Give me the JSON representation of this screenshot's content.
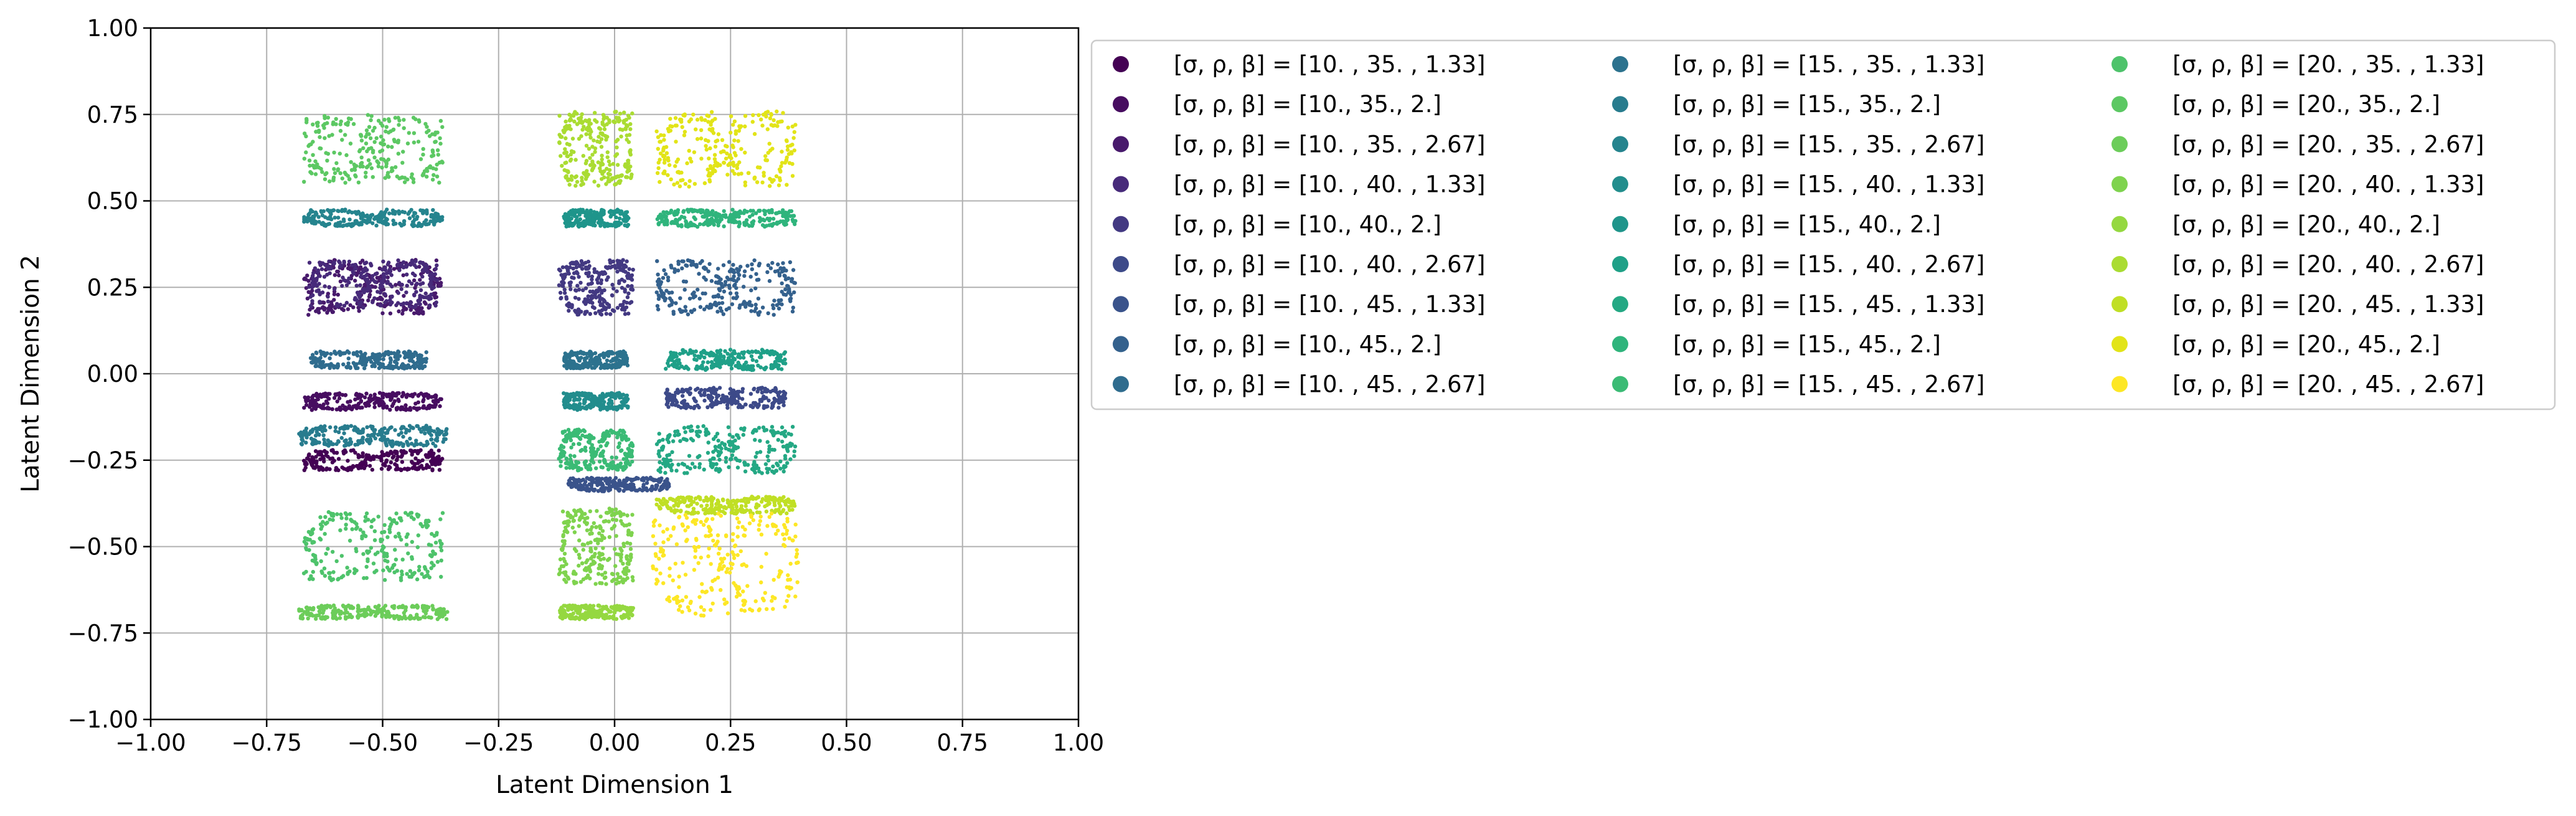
{
  "chart_data": {
    "type": "scatter",
    "xlabel": "Latent Dimension 1",
    "ylabel": "Latent Dimension 2",
    "xlim": [
      -1.0,
      1.0
    ],
    "ylim": [
      -1.0,
      1.0
    ],
    "grid": true,
    "legend_placement": "outside-right",
    "legend_columns": 3,
    "x_ticks": [
      -1.0,
      -0.75,
      -0.5,
      -0.25,
      0.0,
      0.25,
      0.5,
      0.75,
      1.0
    ],
    "x_tick_labels": [
      "−1.00",
      "−0.75",
      "−0.50",
      "−0.25",
      "0.00",
      "0.25",
      "0.50",
      "0.75",
      "1.00"
    ],
    "y_ticks": [
      -1.0,
      -0.75,
      -0.5,
      -0.25,
      0.0,
      0.25,
      0.5,
      0.75,
      1.0
    ],
    "y_tick_labels": [
      "−1.00",
      "−0.75",
      "−0.50",
      "−0.25",
      "0.00",
      "0.25",
      "0.50",
      "0.75",
      "1.00"
    ],
    "series": [
      {
        "name": "[σ, ρ, β] = [10.  , 35.  ,  1.33]",
        "color": "#440154",
        "clusters": [
          {
            "cx": -0.52,
            "cy": -0.25,
            "w": 0.3,
            "h": 0.06
          }
        ]
      },
      {
        "name": "[σ, ρ, β] = [10., 35.,  2.]",
        "color": "#470d60",
        "clusters": [
          {
            "cx": -0.52,
            "cy": -0.08,
            "w": 0.3,
            "h": 0.05
          }
        ]
      },
      {
        "name": "[σ, ρ, β] = [10.  , 35.  ,  2.67]",
        "color": "#481a6c",
        "clusters": [
          {
            "cx": -0.52,
            "cy": 0.25,
            "w": 0.3,
            "h": 0.16
          }
        ]
      },
      {
        "name": "[σ, ρ, β] = [10.  , 40.  ,  1.33]",
        "color": "#472a7a",
        "clusters": [
          {
            "cx": -0.52,
            "cy": 0.26,
            "w": 0.28,
            "h": 0.14
          }
        ]
      },
      {
        "name": "[σ, ρ, β] = [10., 40.,  2.]",
        "color": "#433982",
        "clusters": [
          {
            "cx": -0.04,
            "cy": 0.25,
            "w": 0.16,
            "h": 0.16
          }
        ]
      },
      {
        "name": "[σ, ρ, β] = [10.  , 40.  ,  2.67]",
        "color": "#3d4a89",
        "clusters": [
          {
            "cx": 0.24,
            "cy": -0.07,
            "w": 0.26,
            "h": 0.06
          }
        ]
      },
      {
        "name": "[σ, ρ, β] = [10.  , 45.  ,  1.33]",
        "color": "#3a538b",
        "clusters": [
          {
            "cx": 0.01,
            "cy": -0.32,
            "w": 0.22,
            "h": 0.04
          }
        ]
      },
      {
        "name": "[σ, ρ, β] = [10., 45.,  2.]",
        "color": "#34618d",
        "clusters": [
          {
            "cx": 0.24,
            "cy": 0.25,
            "w": 0.3,
            "h": 0.16
          }
        ]
      },
      {
        "name": "[σ, ρ, β] = [10.  , 45.  ,  2.67]",
        "color": "#2f6c8e",
        "clusters": [
          {
            "cx": -0.53,
            "cy": 0.04,
            "w": 0.25,
            "h": 0.05
          }
        ]
      },
      {
        "name": "[σ, ρ, β] = [15.  , 35.  ,  1.33]",
        "color": "#2c728e",
        "clusters": [
          {
            "cx": -0.04,
            "cy": 0.04,
            "w": 0.14,
            "h": 0.05
          }
        ]
      },
      {
        "name": "[σ, ρ, β] = [15., 35.,  2.]",
        "color": "#287c8e",
        "clusters": [
          {
            "cx": -0.52,
            "cy": -0.18,
            "w": 0.32,
            "h": 0.06
          }
        ]
      },
      {
        "name": "[σ, ρ, β] = [15.  , 35.  ,  2.67]",
        "color": "#25848e",
        "clusters": [
          {
            "cx": -0.52,
            "cy": 0.45,
            "w": 0.3,
            "h": 0.05
          }
        ]
      },
      {
        "name": "[σ, ρ, β] = [15.  , 40.  ,  1.33]",
        "color": "#228d8d",
        "clusters": [
          {
            "cx": -0.04,
            "cy": -0.08,
            "w": 0.14,
            "h": 0.05
          }
        ]
      },
      {
        "name": "[σ, ρ, β] = [15., 40.,  2.]",
        "color": "#1f958b",
        "clusters": [
          {
            "cx": -0.04,
            "cy": 0.45,
            "w": 0.14,
            "h": 0.05
          }
        ]
      },
      {
        "name": "[σ, ρ, β] = [15.  , 40.  ,  2.67]",
        "color": "#1fa088",
        "clusters": [
          {
            "cx": 0.24,
            "cy": 0.04,
            "w": 0.26,
            "h": 0.06
          }
        ]
      },
      {
        "name": "[σ, ρ, β] = [15.  , 45.  ,  1.33]",
        "color": "#24a884",
        "clusters": [
          {
            "cx": 0.24,
            "cy": -0.22,
            "w": 0.3,
            "h": 0.14
          }
        ]
      },
      {
        "name": "[σ, ρ, β] = [15., 45.,  2.]",
        "color": "#2fb47c",
        "clusters": [
          {
            "cx": 0.24,
            "cy": 0.45,
            "w": 0.3,
            "h": 0.05
          }
        ]
      },
      {
        "name": "[σ, ρ, β] = [15.  , 45.  ,  2.67]",
        "color": "#3bbb75",
        "clusters": [
          {
            "cx": -0.04,
            "cy": -0.22,
            "w": 0.16,
            "h": 0.12
          }
        ]
      },
      {
        "name": "[σ, ρ, β] = [20.  , 35.  ,  1.33]",
        "color": "#4ec36b",
        "clusters": [
          {
            "cx": -0.52,
            "cy": -0.5,
            "w": 0.3,
            "h": 0.2
          }
        ]
      },
      {
        "name": "[σ, ρ, β] = [20., 35.,  2.]",
        "color": "#5cc863",
        "clusters": [
          {
            "cx": -0.52,
            "cy": 0.65,
            "w": 0.3,
            "h": 0.2
          }
        ]
      },
      {
        "name": "[σ, ρ, β] = [20.  , 35.  ,  2.67]",
        "color": "#6ccd5a",
        "clusters": [
          {
            "cx": -0.52,
            "cy": -0.69,
            "w": 0.32,
            "h": 0.04
          }
        ]
      },
      {
        "name": "[σ, ρ, β] = [20.  , 40.  ,  1.33]",
        "color": "#7fd34e",
        "clusters": [
          {
            "cx": -0.04,
            "cy": -0.5,
            "w": 0.16,
            "h": 0.22
          }
        ]
      },
      {
        "name": "[σ, ρ, β] = [20., 40.,  2.]",
        "color": "#95d840",
        "clusters": [
          {
            "cx": -0.04,
            "cy": -0.69,
            "w": 0.16,
            "h": 0.04
          }
        ]
      },
      {
        "name": "[σ, ρ, β] = [20.  , 40.  ,  2.67]",
        "color": "#aadc32",
        "clusters": [
          {
            "cx": -0.04,
            "cy": 0.65,
            "w": 0.16,
            "h": 0.22
          }
        ]
      },
      {
        "name": "[σ, ρ, β] = [20.  , 45.  ,  1.33]",
        "color": "#c0df25",
        "clusters": [
          {
            "cx": 0.24,
            "cy": -0.38,
            "w": 0.3,
            "h": 0.05
          }
        ]
      },
      {
        "name": "[σ, ρ, β] = [20., 45.,  2.]",
        "color": "#e2e418",
        "clusters": [
          {
            "cx": 0.24,
            "cy": 0.65,
            "w": 0.3,
            "h": 0.22
          }
        ]
      },
      {
        "name": "[σ, ρ, β] = [20.  , 45.  ,  2.67]",
        "color": "#fde725",
        "clusters": [
          {
            "cx": 0.24,
            "cy": -0.55,
            "w": 0.32,
            "h": 0.3
          }
        ]
      }
    ]
  }
}
